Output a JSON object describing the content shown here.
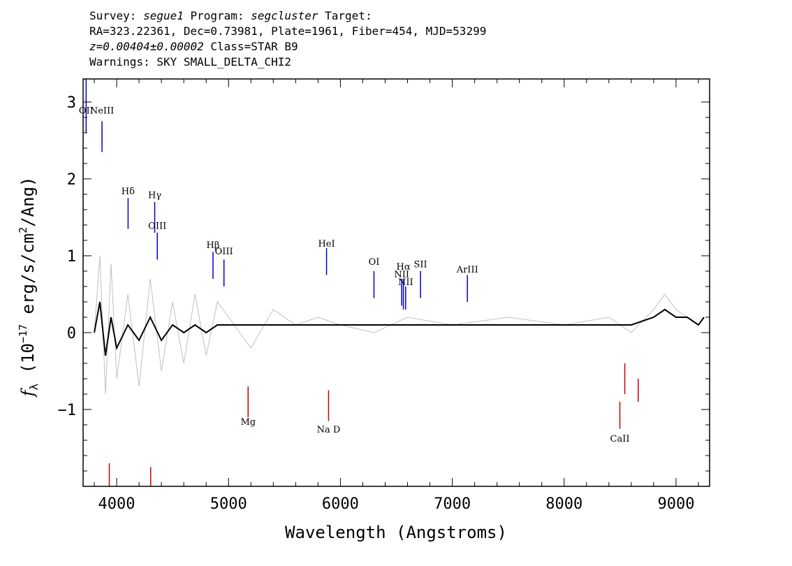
{
  "header": {
    "line1_prefix": "Survey: ",
    "survey": "segue1",
    "line1_mid": " Program: ",
    "program": "segcluster",
    "line1_suffix": " Target:",
    "line2": "RA=323.22361, Dec=0.73981, Plate=1961, Fiber=454, MJD=53299",
    "redshift": "z=0.00404±0.00002",
    "class_text": " Class=STAR B9",
    "warnings": "Warnings: SKY SMALL_DELTA_CHI2"
  },
  "chart_data": {
    "type": "line",
    "xlabel": "Wavelength (Angstroms)",
    "ylabel_f": "f",
    "ylabel_sub": "λ",
    "ylabel_rest": " (10",
    "ylabel_exp": "−17",
    "ylabel_units": " erg/s/cm",
    "ylabel_exp2": "2",
    "ylabel_end": "/Ang)",
    "xlim": [
      3700,
      9300
    ],
    "ylim": [
      -2.0,
      3.3
    ],
    "xticks": [
      4000,
      5000,
      6000,
      7000,
      8000,
      9000
    ],
    "yticks": [
      -1,
      0,
      1,
      2,
      3
    ],
    "ytick_labels": [
      "−1",
      "0",
      "1",
      "2",
      "3"
    ],
    "series": [
      {
        "color": "#c0c0c0",
        "x": [
          3800,
          3850,
          3900,
          3950,
          4000,
          4100,
          4200,
          4300,
          4400,
          4500,
          4600,
          4700,
          4800,
          4900,
          5000,
          5200,
          5400,
          5600,
          5800,
          6000,
          6300,
          6600,
          7000,
          7500,
          8000,
          8400,
          8600,
          8800,
          8900,
          9000,
          9100,
          9200,
          9250
        ],
        "y": [
          0.0,
          1.0,
          -0.8,
          0.9,
          -0.6,
          0.5,
          -0.7,
          0.7,
          -0.5,
          0.4,
          -0.4,
          0.5,
          -0.3,
          0.4,
          0.2,
          -0.2,
          0.3,
          0.1,
          0.2,
          0.1,
          0.0,
          0.2,
          0.1,
          0.2,
          0.1,
          0.2,
          0.0,
          0.3,
          0.5,
          0.3,
          0.2,
          0.1,
          0.2
        ]
      },
      {
        "color": "#000000",
        "x": [
          3800,
          3850,
          3900,
          3950,
          4000,
          4100,
          4200,
          4300,
          4400,
          4500,
          4600,
          4700,
          4800,
          4900,
          5000,
          5200,
          5400,
          5600,
          5800,
          6000,
          6300,
          6600,
          7000,
          7500,
          8000,
          8400,
          8600,
          8800,
          8900,
          9000,
          9100,
          9200,
          9250
        ],
        "y": [
          0.0,
          0.4,
          -0.3,
          0.2,
          -0.2,
          0.1,
          -0.1,
          0.2,
          -0.1,
          0.1,
          0.0,
          0.1,
          0.0,
          0.1,
          0.1,
          0.1,
          0.1,
          0.1,
          0.1,
          0.1,
          0.1,
          0.1,
          0.1,
          0.1,
          0.1,
          0.1,
          0.1,
          0.2,
          0.3,
          0.2,
          0.2,
          0.1,
          0.2
        ]
      }
    ],
    "emission_lines": [
      {
        "label": "OII",
        "x": 3727,
        "color": "#0000cc",
        "y1": 2.6,
        "y2": 3.3,
        "label_y": 2.85
      },
      {
        "label": "NeIII",
        "x": 3869,
        "color": "#0000cc",
        "y1": 2.35,
        "y2": 2.75,
        "label_y": 2.85
      },
      {
        "label": "Hδ",
        "x": 4102,
        "color": "#0000cc",
        "y1": 1.35,
        "y2": 1.75,
        "label_y": 1.8
      },
      {
        "label": "Hγ",
        "x": 4340,
        "color": "#0000cc",
        "y1": 1.3,
        "y2": 1.7,
        "label_y": 1.75
      },
      {
        "label": "OIII",
        "x": 4363,
        "color": "#0000cc",
        "y1": 0.95,
        "y2": 1.3,
        "label_y": 1.35
      },
      {
        "label": "Hβ",
        "x": 4861,
        "color": "#0000cc",
        "y1": 0.7,
        "y2": 1.05,
        "label_y": 1.1
      },
      {
        "label": "OIII",
        "x": 4959,
        "color": "#0000cc",
        "y1": 0.6,
        "y2": 0.95,
        "label_y": 1.02
      },
      {
        "label": "HeI",
        "x": 5876,
        "color": "#0000cc",
        "y1": 0.75,
        "y2": 1.1,
        "label_y": 1.12
      },
      {
        "label": "OI",
        "x": 6300,
        "color": "#0000cc",
        "y1": 0.45,
        "y2": 0.8,
        "label_y": 0.88
      },
      {
        "label": "NII",
        "x": 6548,
        "color": "#0000cc",
        "y1": 0.35,
        "y2": 0.7,
        "label_y": 0.72
      },
      {
        "label": "Hα",
        "x": 6563,
        "color": "#0000cc",
        "y1": 0.3,
        "y2": 0.7,
        "label_y": 0.82
      },
      {
        "label": "NII",
        "x": 6583,
        "color": "#0000cc",
        "y1": 0.3,
        "y2": 0.6,
        "label_y": 0.62
      },
      {
        "label": "SII",
        "x": 6716,
        "color": "#0000cc",
        "y1": 0.45,
        "y2": 0.8,
        "label_y": 0.85
      },
      {
        "label": "ArIII",
        "x": 7135,
        "color": "#0000cc",
        "y1": 0.4,
        "y2": 0.75,
        "label_y": 0.78
      }
    ],
    "absorption_lines": [
      {
        "label": "",
        "x": 3934,
        "color": "#cc0000",
        "y1": -2.0,
        "y2": -1.7,
        "label_y": -1.9
      },
      {
        "label": "",
        "x": 4304,
        "color": "#cc0000",
        "y1": -2.0,
        "y2": -1.75,
        "label_y": -1.9
      },
      {
        "label": "Mg",
        "x": 5175,
        "color": "#cc0000",
        "y1": -1.1,
        "y2": -0.7,
        "label_y": -1.2
      },
      {
        "label": "Na D",
        "x": 5894,
        "color": "#cc0000",
        "y1": -1.15,
        "y2": -0.75,
        "label_y": -1.3
      },
      {
        "label": "CaII",
        "x": 8498,
        "color": "#cc0000",
        "y1": -1.25,
        "y2": -0.9,
        "label_y": -1.42
      },
      {
        "label": "",
        "x": 8542,
        "color": "#cc0000",
        "y1": -0.8,
        "y2": -0.4,
        "label_y": -0.9
      },
      {
        "label": "",
        "x": 8662,
        "color": "#cc0000",
        "y1": -0.9,
        "y2": -0.6,
        "label_y": -1.0
      }
    ]
  }
}
